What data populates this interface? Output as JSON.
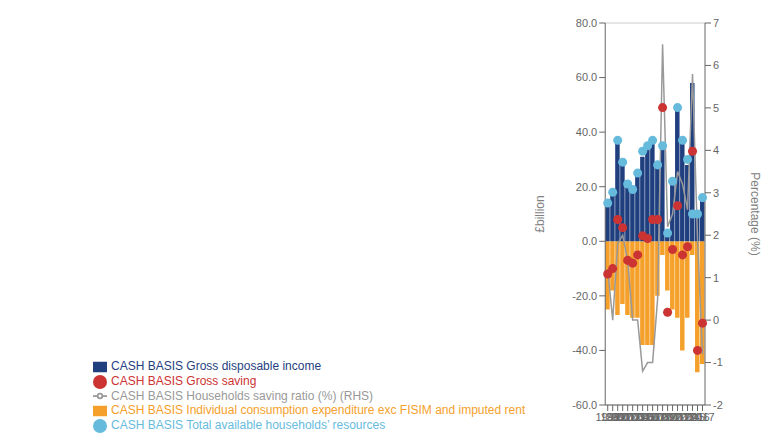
{
  "chart_data": {
    "type": "bar",
    "categories": [
      "1998",
      "1999",
      "2000",
      "2001",
      "2002",
      "2003",
      "2004",
      "2005",
      "2006",
      "2007",
      "2008",
      "2009",
      "2010",
      "2011",
      "2012",
      "2013",
      "2014",
      "2015",
      "2016",
      "2017"
    ],
    "series": [
      {
        "name": "CASH BASIS Individual consumption expenditure exc FISIM  and  imputed rent",
        "type": "bar",
        "color": "#f5a02a",
        "values": [
          -25,
          -18,
          -27,
          -23,
          -27,
          -28,
          -28,
          -38,
          -38,
          -38,
          -20,
          -5,
          -18,
          -25,
          -28,
          -40,
          -28,
          -5,
          -48,
          -45
        ]
      },
      {
        "name": "CASH BASIS Gross disposable income",
        "type": "bar",
        "color": "#1f3f7f",
        "values": [
          13,
          18,
          36,
          28,
          21,
          19,
          24,
          31,
          34,
          37,
          27,
          35,
          4,
          22,
          48,
          36,
          28,
          58,
          10,
          15
        ]
      },
      {
        "name": "CASH BASIS Gross saving",
        "type": "scatter",
        "color": "#cc3333",
        "values": [
          -12,
          -10,
          8,
          5,
          -7,
          -8,
          -5,
          2,
          1,
          8,
          8,
          49,
          -26,
          -3,
          13,
          -5,
          -2,
          33,
          -40,
          -30
        ]
      },
      {
        "name": "CASH BASIS Total available households’ resources",
        "type": "scatter",
        "color": "#66bbdd",
        "values": [
          14,
          18,
          37,
          29,
          21,
          19,
          25,
          33,
          35,
          37,
          28,
          35,
          3,
          22,
          49,
          37,
          30,
          10,
          10,
          16
        ]
      },
      {
        "name": "CASH BASIS Households saving ratio (%) (RHS)",
        "type": "line",
        "color": "#999999",
        "axis": "y2",
        "values": [
          1.2,
          0.0,
          1.8,
          2.0,
          1.4,
          0.0,
          0.0,
          -1.2,
          -1.0,
          -1.0,
          0.5,
          6.5,
          2.2,
          2.5,
          3.5,
          3.2,
          2.6,
          5.8,
          1.9,
          -0.8
        ]
      }
    ],
    "ylabel": "£billion",
    "y2label": "Percentage (%)",
    "ylim": [
      -60,
      80
    ],
    "yticks": [
      {
        "value": -60,
        "label": "-60.0"
      },
      {
        "value": -40,
        "label": "-40.0"
      },
      {
        "value": -20,
        "label": "-20.0"
      },
      {
        "value": 0,
        "label": "0.0"
      },
      {
        "value": 20,
        "label": "20.0"
      },
      {
        "value": 40,
        "label": "40.0"
      },
      {
        "value": 60,
        "label": "60.0"
      },
      {
        "value": 80,
        "label": "80.0"
      }
    ],
    "y2lim": [
      -2,
      7
    ],
    "y2ticks": [
      -2,
      -1,
      0,
      1,
      2,
      3,
      4,
      5,
      6,
      7
    ],
    "stacked": true,
    "grid": true,
    "legend": "bottom"
  }
}
